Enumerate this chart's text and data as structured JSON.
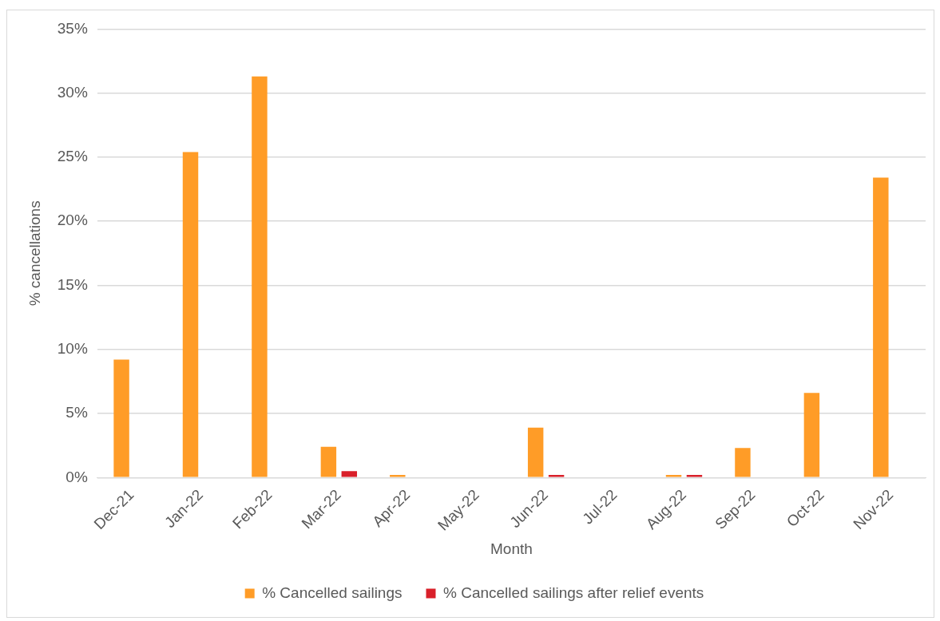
{
  "chart_data": {
    "type": "bar",
    "xlabel": "Month",
    "ylabel": "% cancellations",
    "categories": [
      "Dec-21",
      "Jan-22",
      "Feb-22",
      "Mar-22",
      "Apr-22",
      "May-22",
      "Jun-22",
      "Jul-22",
      "Aug-22",
      "Sep-22",
      "Oct-22",
      "Nov-22"
    ],
    "series": [
      {
        "name": "% Cancelled sailings",
        "color": "#ff9c27",
        "values": [
          9.2,
          25.4,
          31.3,
          2.4,
          0.2,
          0,
          3.9,
          0,
          0.2,
          2.3,
          6.6,
          23.4
        ]
      },
      {
        "name": "% Cancelled sailings after relief events",
        "color": "#d9202a",
        "values": [
          0,
          0,
          0,
          0.5,
          0,
          0,
          0.2,
          0,
          0.2,
          0,
          0,
          0
        ]
      }
    ],
    "ylim": [
      0,
      35
    ],
    "yticks": [
      {
        "value": 0,
        "label": "0%"
      },
      {
        "value": 5,
        "label": "5%"
      },
      {
        "value": 10,
        "label": "10%"
      },
      {
        "value": 15,
        "label": "15%"
      },
      {
        "value": 20,
        "label": "20%"
      },
      {
        "value": 25,
        "label": "25%"
      },
      {
        "value": 30,
        "label": "30%"
      },
      {
        "value": 35,
        "label": "35%"
      }
    ],
    "grid": "y",
    "legend": "bottom"
  }
}
